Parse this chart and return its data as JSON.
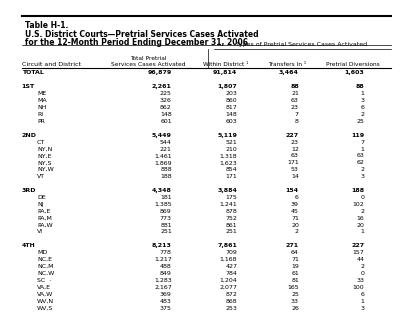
{
  "title_line1": "Table H-1.",
  "title_line2": "U.S. District Courts—Pretrial Services Cases Activated",
  "title_line3": "for the 12-Month Period Ending December 31, 2006",
  "col_headers": [
    "Circuit and District",
    "Total Pretrial\nServices Cases Activated",
    "Within District ¹",
    "Transfers In ¹",
    "Pretrial Diversions"
  ],
  "col_group_header": "Types of Pretrial Services Cases Activated",
  "rows": [
    {
      "label": "TOTAL",
      "indent": 1,
      "bold": true,
      "values": [
        "96,879",
        "91,814",
        "3,464",
        "1,603"
      ]
    },
    {
      "label": "",
      "indent": 0,
      "bold": false,
      "values": [
        "",
        "",
        "",
        ""
      ]
    },
    {
      "label": "1ST",
      "indent": 1,
      "bold": true,
      "values": [
        "2,261",
        "1,807",
        "88",
        "88"
      ]
    },
    {
      "label": "ME",
      "indent": 2,
      "bold": false,
      "values": [
        "225",
        "203",
        "21",
        "1"
      ]
    },
    {
      "label": "MA",
      "indent": 2,
      "bold": false,
      "values": [
        "326",
        "860",
        "63",
        "3"
      ]
    },
    {
      "label": "NH",
      "indent": 2,
      "bold": false,
      "values": [
        "862",
        "817",
        "23",
        "6"
      ]
    },
    {
      "label": "RI",
      "indent": 2,
      "bold": false,
      "values": [
        "148",
        "148",
        "7",
        "2"
      ]
    },
    {
      "label": "PR",
      "indent": 2,
      "bold": false,
      "values": [
        "601",
        "603",
        "8",
        "25"
      ]
    },
    {
      "label": "",
      "indent": 0,
      "bold": false,
      "values": [
        "",
        "",
        "",
        ""
      ]
    },
    {
      "label": "2ND",
      "indent": 1,
      "bold": true,
      "values": [
        "5,449",
        "5,119",
        "227",
        "119"
      ]
    },
    {
      "label": "CT",
      "indent": 2,
      "bold": false,
      "values": [
        "544",
        "521",
        "23",
        "7"
      ]
    },
    {
      "label": "NY,N",
      "indent": 2,
      "bold": false,
      "values": [
        "221",
        "210",
        "12",
        "1"
      ]
    },
    {
      "label": "NY,E",
      "indent": 2,
      "bold": false,
      "values": [
        "1,461",
        "1,318",
        "63",
        "63"
      ]
    },
    {
      "label": "NY,S",
      "indent": 2,
      "bold": false,
      "values": [
        "1,869",
        "1,623",
        "171",
        "62"
      ]
    },
    {
      "label": "NY,W",
      "indent": 2,
      "bold": false,
      "values": [
        "888",
        "854",
        "53",
        "2"
      ]
    },
    {
      "label": "VT",
      "indent": 2,
      "bold": false,
      "values": [
        "188",
        "171",
        "14",
        "3"
      ]
    },
    {
      "label": "",
      "indent": 0,
      "bold": false,
      "values": [
        "",
        "",
        "",
        ""
      ]
    },
    {
      "label": "3RD",
      "indent": 1,
      "bold": true,
      "values": [
        "4,348",
        "3,884",
        "154",
        "188"
      ]
    },
    {
      "label": "DE",
      "indent": 2,
      "bold": false,
      "values": [
        "181",
        "175",
        "6",
        "0"
      ]
    },
    {
      "label": "NJ",
      "indent": 2,
      "bold": false,
      "values": [
        "1,385",
        "1,241",
        "39",
        "102"
      ]
    },
    {
      "label": "PA,E",
      "indent": 2,
      "bold": false,
      "values": [
        "869",
        "878",
        "45",
        "2"
      ]
    },
    {
      "label": "PA,M",
      "indent": 2,
      "bold": false,
      "values": [
        "773",
        "752",
        "71",
        "16"
      ]
    },
    {
      "label": "PA,W",
      "indent": 2,
      "bold": false,
      "values": [
        "881",
        "861",
        "20",
        "20"
      ]
    },
    {
      "label": "VI",
      "indent": 2,
      "bold": false,
      "values": [
        "251",
        "251",
        "2",
        "1"
      ]
    },
    {
      "label": "",
      "indent": 0,
      "bold": false,
      "values": [
        "",
        "",
        "",
        ""
      ]
    },
    {
      "label": "4TH",
      "indent": 1,
      "bold": true,
      "values": [
        "8,213",
        "7,861",
        "271",
        "227"
      ]
    },
    {
      "label": "MD",
      "indent": 2,
      "bold": false,
      "values": [
        "778",
        "709",
        "64",
        "157"
      ]
    },
    {
      "label": "NC,E",
      "indent": 2,
      "bold": false,
      "values": [
        "1,217",
        "1,168",
        "71",
        "44"
      ]
    },
    {
      "label": "NC,M",
      "indent": 2,
      "bold": false,
      "values": [
        "488",
        "427",
        "19",
        "2"
      ]
    },
    {
      "label": "NC,W",
      "indent": 2,
      "bold": false,
      "values": [
        "849",
        "784",
        "61",
        "0"
      ]
    },
    {
      "label": "SC  ·",
      "indent": 2,
      "bold": false,
      "values": [
        "1,283",
        "1,204",
        "81",
        "33"
      ]
    },
    {
      "label": "VA,E",
      "indent": 2,
      "bold": false,
      "values": [
        "2,167",
        "2,077",
        "165",
        "100"
      ]
    },
    {
      "label": "VA,W",
      "indent": 2,
      "bold": false,
      "values": [
        "369",
        "872",
        "25",
        "6"
      ]
    },
    {
      "label": "WV,N",
      "indent": 2,
      "bold": false,
      "values": [
        "483",
        "868",
        "33",
        "1"
      ]
    },
    {
      "label": "WV,S",
      "indent": 2,
      "bold": false,
      "values": [
        "375",
        "253",
        "26",
        "3"
      ]
    },
    {
      "label": "",
      "indent": 0,
      "bold": false,
      "values": [
        "",
        "",
        "",
        ""
      ]
    }
  ],
  "bg_color": "#ffffff",
  "header_line_color": "#000000",
  "font_size": 4.5,
  "header_font_size": 5.0,
  "title_font_size": 5.5
}
